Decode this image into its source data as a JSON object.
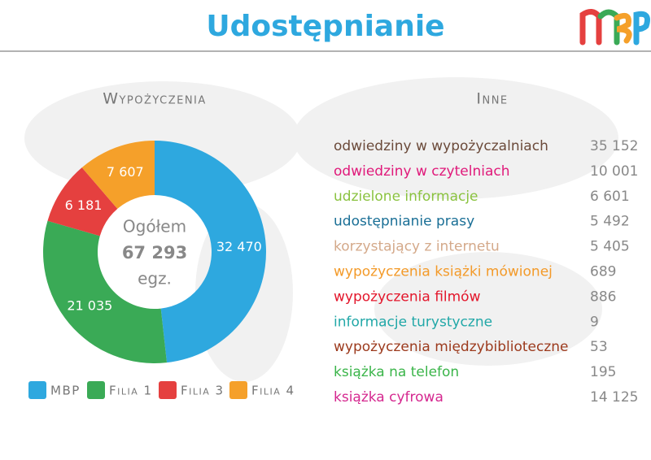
{
  "header": {
    "title": "Udostępnianie"
  },
  "chart_data": {
    "type": "pie",
    "title": "Wypożyczenia",
    "categories": [
      "MBP",
      "Filia 1",
      "Filia 3",
      "Filia 4"
    ],
    "values": [
      32470,
      21035,
      6181,
      7607
    ],
    "value_labels": [
      "32 470",
      "21 035",
      "6 181",
      "7 607"
    ],
    "colors": [
      "#2ea8df",
      "#3aaa56",
      "#e5403f",
      "#f5a02a"
    ],
    "center_text": [
      "Ogółem",
      "67 293",
      "egz."
    ]
  },
  "other": {
    "title": "Inne",
    "rows": [
      {
        "label": "odwiedziny w wypożyczalniach",
        "value": "35 152",
        "color": "#6b4a3a"
      },
      {
        "label": "odwiedziny w czytelniach",
        "value": "10 001",
        "color": "#e0197a"
      },
      {
        "label": "udzielone informacje",
        "value": "6 601",
        "color": "#8ac23f"
      },
      {
        "label": "udostępnianie prasy",
        "value": "5 492",
        "color": "#1a6f96"
      },
      {
        "label": "korzystający z internetu",
        "value": "5 405",
        "color": "#d4a98a"
      },
      {
        "label": "wypożyczenia książki mówionej",
        "value": "689",
        "color": "#f39a29"
      },
      {
        "label": "wypożyczenia filmów",
        "value": "886",
        "color": "#e3162b"
      },
      {
        "label": "informacje turystyczne",
        "value": "9",
        "color": "#22a8a8"
      },
      {
        "label": "wypożyczenia międzybiblioteczne",
        "value": "53",
        "color": "#9c3a1d"
      },
      {
        "label": "książka na telefon",
        "value": "195",
        "color": "#3bb54a"
      },
      {
        "label": "książka cyfrowa",
        "value": "14 125",
        "color": "#d5288f"
      }
    ]
  }
}
